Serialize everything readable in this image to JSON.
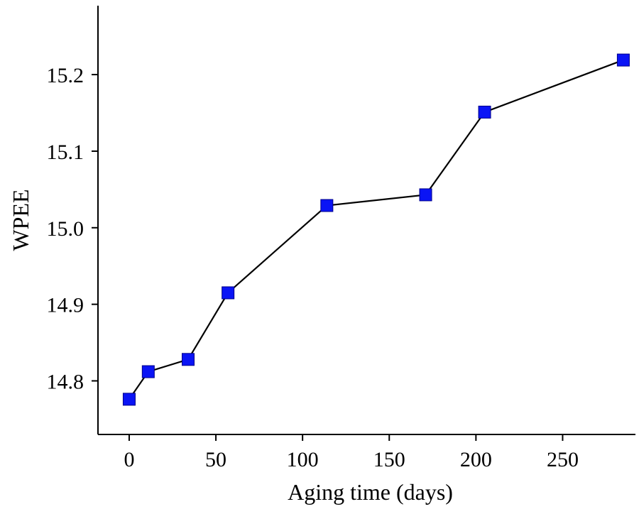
{
  "chart_data": {
    "type": "line",
    "title": "",
    "xlabel": "Aging time (days)",
    "ylabel": "WPEE",
    "xlim": [
      -18,
      292
    ],
    "ylim": [
      14.73,
      15.29
    ],
    "xticks": [
      0,
      50,
      100,
      150,
      200,
      250
    ],
    "yticks": [
      14.8,
      14.9,
      15.0,
      15.1,
      15.2
    ],
    "xtick_labels": [
      "0",
      "50",
      "100",
      "150",
      "200",
      "250"
    ],
    "ytick_labels": [
      "14.8",
      "14.9",
      "15.0",
      "15.1",
      "15.2"
    ],
    "grid": false,
    "legend": false,
    "series": [
      {
        "x": [
          0,
          11,
          34,
          57,
          114,
          171,
          205,
          285
        ],
        "y": [
          14.776,
          14.812,
          14.828,
          14.915,
          15.029,
          15.043,
          15.151,
          15.219
        ],
        "marker": "square",
        "marker_color": "#0a14f5",
        "line_color": "#000000"
      }
    ]
  }
}
